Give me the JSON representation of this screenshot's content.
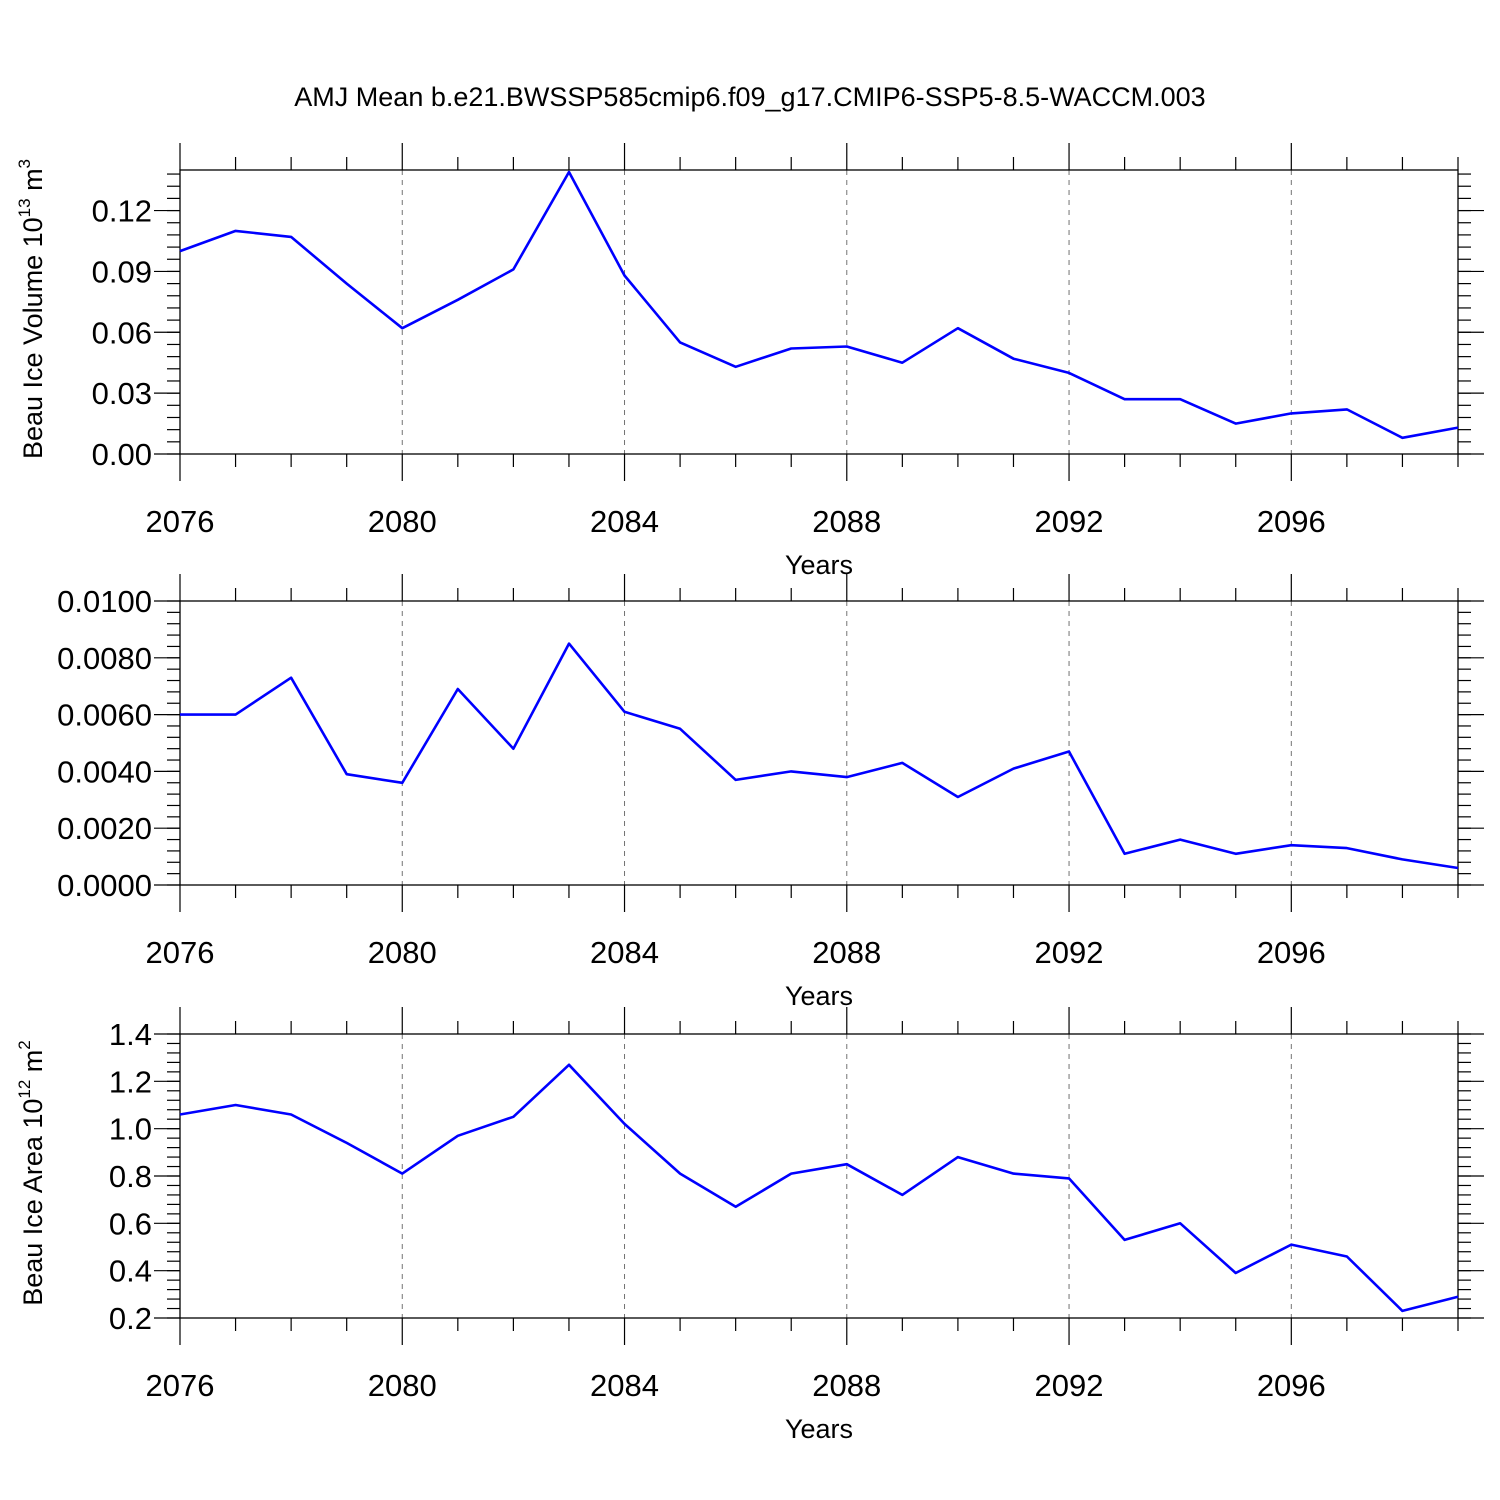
{
  "figure": {
    "title": "AMJ Mean b.e21.BWSSP585cmip6.f09_g17.CMIP6-SSP5-8.5-WACCM.003"
  },
  "chart_data": [
    {
      "type": "line",
      "title": "",
      "xlabel": "Years",
      "ylabel": "Beau Ice Volume 10",
      "ylabel_sup": "13",
      "ylabel_unit": " m",
      "ylabel_unit_sup": "3",
      "x": [
        2076,
        2077,
        2078,
        2079,
        2080,
        2081,
        2082,
        2083,
        2084,
        2085,
        2086,
        2087,
        2088,
        2089,
        2090,
        2091,
        2092,
        2093,
        2094,
        2095,
        2096,
        2097,
        2098,
        2099
      ],
      "series": [
        {
          "values": [
            0.1,
            0.11,
            0.107,
            0.084,
            0.062,
            0.076,
            0.091,
            0.139,
            0.088,
            0.055,
            0.043,
            0.052,
            0.053,
            0.045,
            0.062,
            0.047,
            0.04,
            0.027,
            0.027,
            0.015,
            0.02,
            0.022,
            0.008,
            0.013
          ],
          "color": "#0000ff"
        }
      ],
      "xlim": [
        2076,
        2099
      ],
      "ylim": [
        0,
        0.14
      ],
      "xticks": [
        "2076",
        "2080",
        "2084",
        "2088",
        "2092",
        "2096"
      ],
      "yticks": [
        "0.00",
        "0.03",
        "0.06",
        "0.09",
        "0.12"
      ],
      "grid": "vertical dashed at major x ticks"
    },
    {
      "type": "line",
      "title": "",
      "xlabel": "Years",
      "ylabel": "",
      "ylabel_sup": "",
      "ylabel_unit": "",
      "ylabel_unit_sup": "",
      "x": [
        2076,
        2077,
        2078,
        2079,
        2080,
        2081,
        2082,
        2083,
        2084,
        2085,
        2086,
        2087,
        2088,
        2089,
        2090,
        2091,
        2092,
        2093,
        2094,
        2095,
        2096,
        2097,
        2098,
        2099
      ],
      "series": [
        {
          "values": [
            0.006,
            0.006,
            0.0073,
            0.0039,
            0.0036,
            0.0069,
            0.0048,
            0.0085,
            0.0061,
            0.0055,
            0.0037,
            0.004,
            0.0038,
            0.0043,
            0.0031,
            0.0041,
            0.0047,
            0.0011,
            0.0016,
            0.0011,
            0.0014,
            0.0013,
            0.0009,
            0.0006
          ],
          "color": "#0000ff"
        }
      ],
      "xlim": [
        2076,
        2099
      ],
      "ylim": [
        0,
        0.01
      ],
      "xticks": [
        "2076",
        "2080",
        "2084",
        "2088",
        "2092",
        "2096"
      ],
      "yticks": [
        "0.0000",
        "0.0020",
        "0.0040",
        "0.0060",
        "0.0080",
        "0.0100"
      ],
      "grid": "vertical dashed at major x ticks"
    },
    {
      "type": "line",
      "title": "",
      "xlabel": "Years",
      "ylabel": "Beau Ice Area 10",
      "ylabel_sup": "12",
      "ylabel_unit": " m",
      "ylabel_unit_sup": "2",
      "x": [
        2076,
        2077,
        2078,
        2079,
        2080,
        2081,
        2082,
        2083,
        2084,
        2085,
        2086,
        2087,
        2088,
        2089,
        2090,
        2091,
        2092,
        2093,
        2094,
        2095,
        2096,
        2097,
        2098,
        2099
      ],
      "series": [
        {
          "values": [
            1.06,
            1.1,
            1.06,
            0.94,
            0.81,
            0.97,
            1.05,
            1.27,
            1.02,
            0.81,
            0.67,
            0.81,
            0.85,
            0.72,
            0.88,
            0.81,
            0.79,
            0.53,
            0.6,
            0.39,
            0.51,
            0.46,
            0.23,
            0.29
          ],
          "color": "#0000ff"
        }
      ],
      "xlim": [
        2076,
        2099
      ],
      "ylim": [
        0.2,
        1.4
      ],
      "xticks": [
        "2076",
        "2080",
        "2084",
        "2088",
        "2092",
        "2096"
      ],
      "yticks": [
        "0.2",
        "0.4",
        "0.6",
        "0.8",
        "1.0",
        "1.2",
        "1.4"
      ],
      "grid": "vertical dashed at major x ticks"
    }
  ]
}
